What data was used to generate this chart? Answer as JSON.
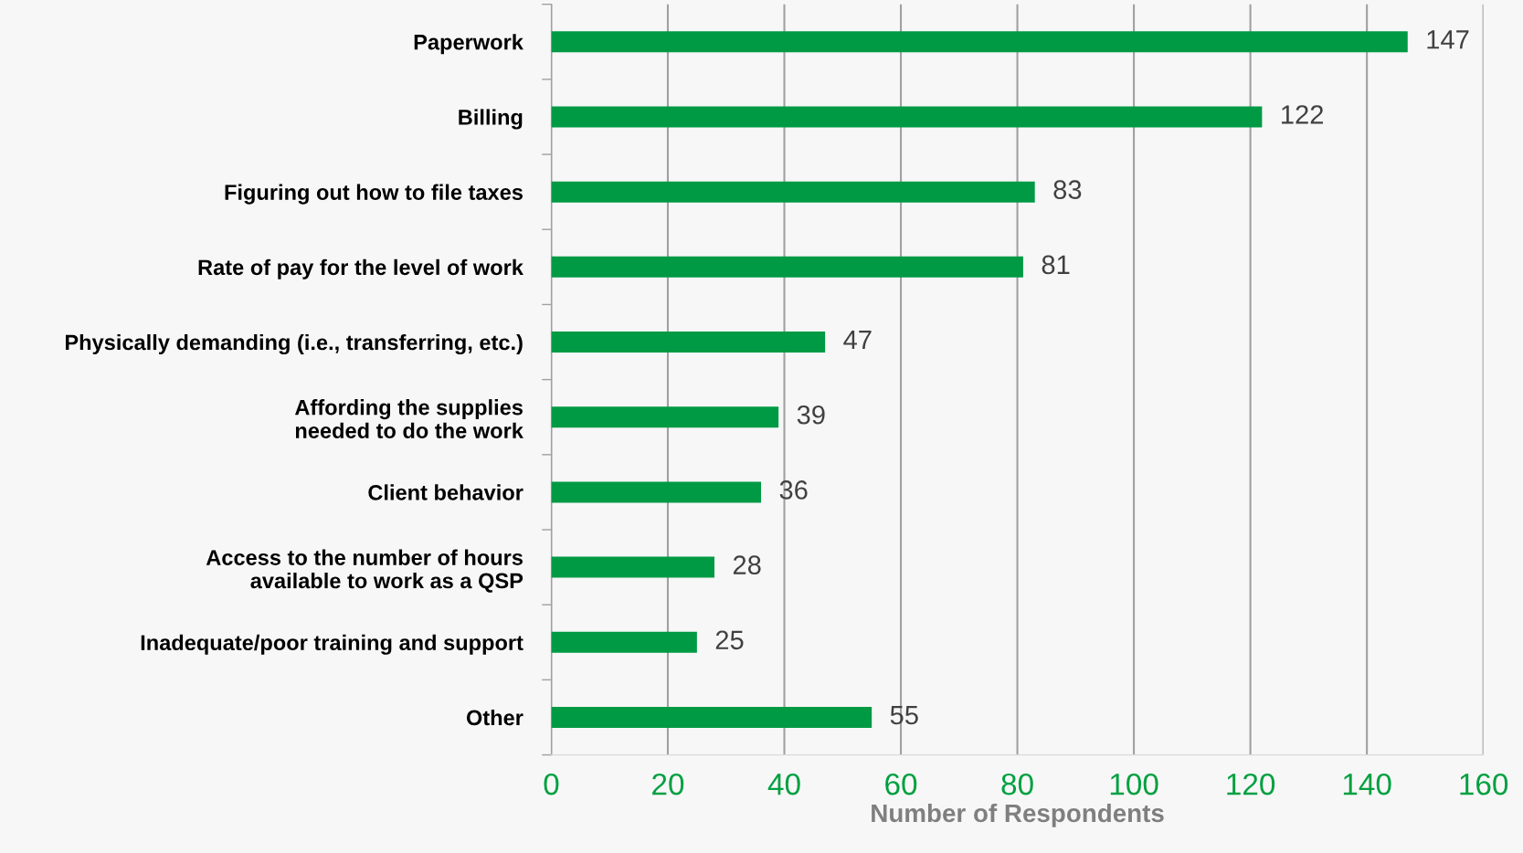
{
  "chart_data": {
    "type": "bar",
    "orientation": "horizontal",
    "xlabel": "Number of Respondents",
    "categories": [
      "Paperwork",
      "Billing",
      "Figuring out how to file taxes",
      "Rate of pay for the level of work",
      "Physically demanding (i.e., transferring, etc.)",
      "Affording the supplies\nneeded to do the work",
      "Client behavior",
      "Access to the number of hours\navailable to work as a QSP",
      "Inadequate/poor training and support",
      "Other"
    ],
    "values": [
      147,
      122,
      83,
      81,
      47,
      39,
      36,
      28,
      25,
      55
    ],
    "color": "#009a44",
    "xlim": [
      0,
      160
    ],
    "xticks": [
      0,
      20,
      40,
      60,
      80,
      100,
      120,
      140,
      160
    ],
    "grid": "x",
    "data_labels": true,
    "legend": false
  }
}
